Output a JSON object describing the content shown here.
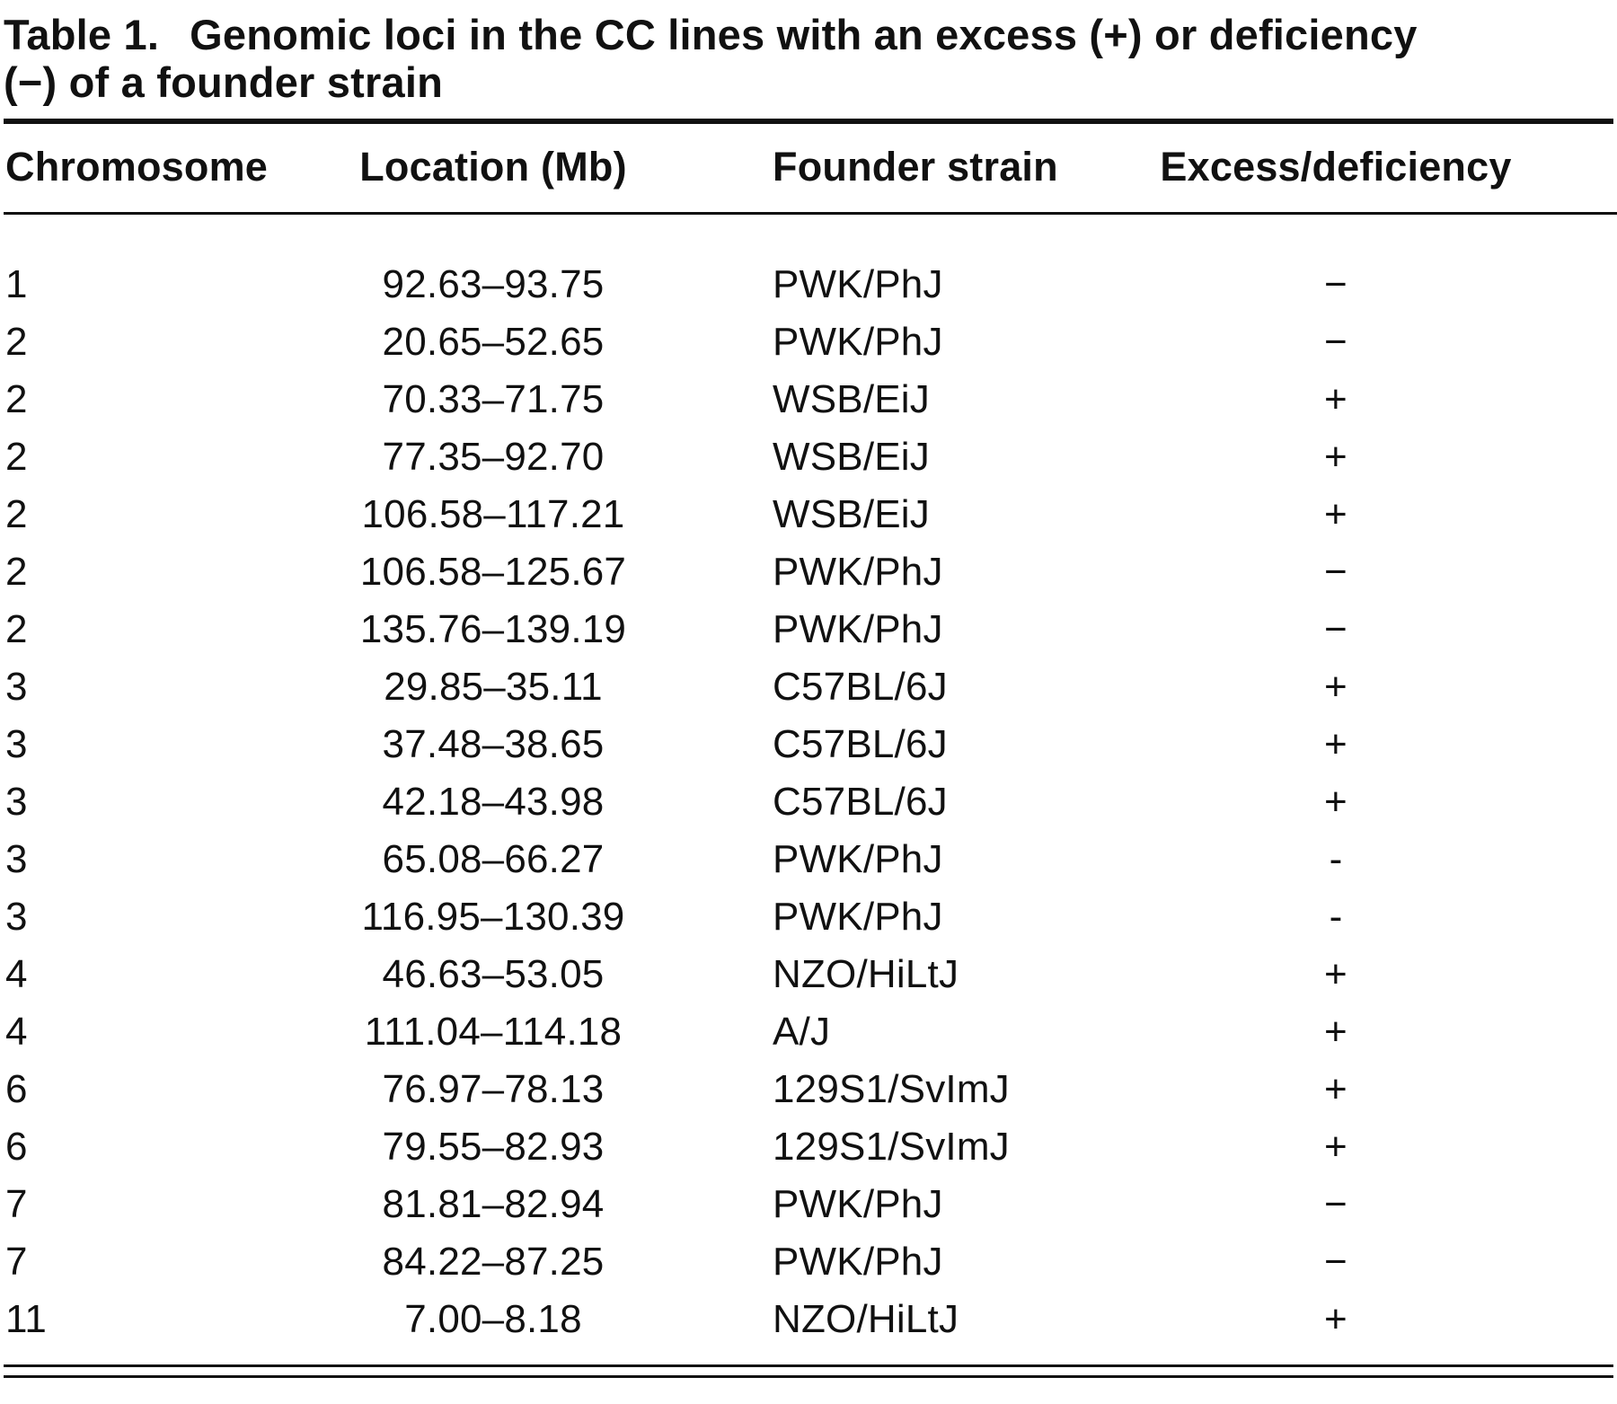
{
  "title": {
    "label": "Table 1.",
    "text": "Genomic loci in the CC lines with an excess (+) or deficiency (−) of a founder strain"
  },
  "table": {
    "columns": [
      "Chromosome",
      "Location (Mb)",
      "Founder strain",
      "Excess/deficiency"
    ],
    "rows": [
      [
        "1",
        "92.63–93.75",
        "PWK/PhJ",
        "−"
      ],
      [
        "2",
        "20.65–52.65",
        "PWK/PhJ",
        "−"
      ],
      [
        "2",
        "70.33–71.75",
        "WSB/EiJ",
        "+"
      ],
      [
        "2",
        "77.35–92.70",
        "WSB/EiJ",
        "+"
      ],
      [
        "2",
        "106.58–117.21",
        "WSB/EiJ",
        "+"
      ],
      [
        "2",
        "106.58–125.67",
        "PWK/PhJ",
        "−"
      ],
      [
        "2",
        "135.76–139.19",
        "PWK/PhJ",
        "−"
      ],
      [
        "3",
        "29.85–35.11",
        "C57BL/6J",
        "+"
      ],
      [
        "3",
        "37.48–38.65",
        "C57BL/6J",
        "+"
      ],
      [
        "3",
        "42.18–43.98",
        "C57BL/6J",
        "+"
      ],
      [
        "3",
        "65.08–66.27",
        "PWK/PhJ",
        "-"
      ],
      [
        "3",
        "116.95–130.39",
        "PWK/PhJ",
        "-"
      ],
      [
        "4",
        "46.63–53.05",
        "NZO/HiLtJ",
        "+"
      ],
      [
        "4",
        "111.04–114.18",
        "A/J",
        "+"
      ],
      [
        "6",
        "76.97–78.13",
        "129S1/SvImJ",
        "+"
      ],
      [
        "6",
        "79.55–82.93",
        "129S1/SvImJ",
        "+"
      ],
      [
        "7",
        "81.81–82.94",
        "PWK/PhJ",
        "−"
      ],
      [
        "7",
        "84.22–87.25",
        "PWK/PhJ",
        "−"
      ],
      [
        "11",
        "7.00–8.18",
        "NZO/HiLtJ",
        "+"
      ]
    ]
  }
}
